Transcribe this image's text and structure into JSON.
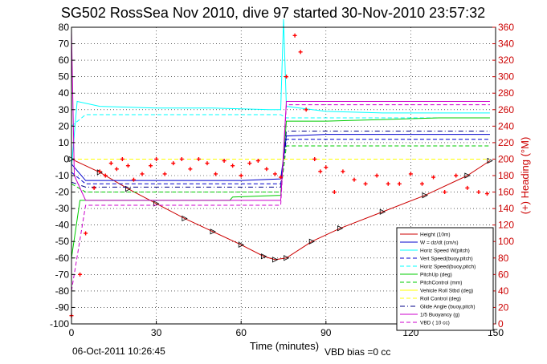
{
  "chart_data": {
    "type": "line",
    "title": "SG502 RossSea Nov 2010, dive 97 started 30-Nov-2010 23:57:32",
    "xlabel": "Time (minutes)",
    "ylabel": "",
    "y2label": "(+) Heading (°M)",
    "xlim": [
      0,
      150
    ],
    "ylim": [
      -100,
      80
    ],
    "y2lim": [
      0,
      360
    ],
    "x_ticks": [
      "0",
      "30",
      "60",
      "90",
      "120",
      "150"
    ],
    "y_ticks": [
      "-100",
      "-90",
      "-80",
      "-70",
      "-60",
      "-50",
      "-40",
      "-30",
      "-20",
      "-10",
      "0",
      "10",
      "20",
      "30",
      "40",
      "50",
      "60",
      "70",
      "80"
    ],
    "y2_ticks": [
      "0",
      "20",
      "40",
      "60",
      "80",
      "100",
      "120",
      "140",
      "160",
      "180",
      "200",
      "220",
      "240",
      "260",
      "280",
      "300",
      "320",
      "340",
      "360"
    ],
    "grid": true,
    "legend_position": "bottom-right",
    "footer_date": "06-Oct-2011 10:26:45",
    "footer_vbd": "VBD bias =0 cc",
    "legend": [
      {
        "name": "Height (10m)",
        "color": "#cc0000",
        "style": "solid"
      },
      {
        "name": "W = dz/dt (cm/s)",
        "color": "#0000cc",
        "style": "solid"
      },
      {
        "name": "Horiz Speed W(pitch)",
        "color": "#00ffff",
        "style": "solid"
      },
      {
        "name": "Vert Speed(buoy,pitch)",
        "color": "#0000cc",
        "style": "dashed"
      },
      {
        "name": "Horiz Speed(buoy,pitch)",
        "color": "#00ffff",
        "style": "dashed"
      },
      {
        "name": "PitchUp (deg)",
        "color": "#00cc00",
        "style": "solid"
      },
      {
        "name": "PitchControl (mm)",
        "color": "#00cc00",
        "style": "dashed"
      },
      {
        "name": "Vehicle Roll Stbd (deg)",
        "color": "#ffff00",
        "style": "solid"
      },
      {
        "name": "Roll Control (deg)",
        "color": "#ffff00",
        "style": "dashed"
      },
      {
        "name": "Glide Angle (buoy,pitch)",
        "color": "#000088",
        "style": "dashdot"
      },
      {
        "name": "1/5 Buoyancy (g)",
        "color": "#cc00cc",
        "style": "solid"
      },
      {
        "name": "VBD ( 10 cc)",
        "color": "#cc00cc",
        "style": "dashed"
      }
    ],
    "series": [
      {
        "name": "Height (10m)",
        "color": "#cc0000",
        "marker": "triangle",
        "x": [
          0,
          10,
          20,
          30,
          40,
          50,
          60,
          68,
          72,
          76,
          85,
          95,
          110,
          125,
          140,
          148
        ],
        "y": [
          0,
          -8,
          -18,
          -27,
          -36,
          -44,
          -52,
          -59,
          -61,
          -60,
          -50,
          -42,
          -32,
          -22,
          -10,
          -1
        ]
      },
      {
        "name": "W = dz/dt (cm/s)",
        "color": "#0000cc",
        "x": [
          0,
          5,
          20,
          40,
          60,
          74,
          76,
          90,
          110,
          130,
          148
        ],
        "y": [
          -3,
          -13,
          -13,
          -13,
          -13,
          -12,
          14,
          15,
          15,
          15,
          15
        ]
      },
      {
        "name": "Horiz Speed W(pitch)",
        "color": "#00ffff",
        "x": [
          0,
          2,
          10,
          30,
          50,
          70,
          74,
          75,
          76,
          90,
          110,
          130,
          148
        ],
        "y": [
          -5,
          35,
          32,
          31,
          31,
          30,
          30,
          85,
          32,
          29,
          28,
          28,
          28
        ]
      },
      {
        "name": "Vert Speed(buoy,pitch)",
        "color": "#0000cc",
        "x": [
          0,
          5,
          74,
          76,
          148
        ],
        "y": [
          -8,
          -15,
          -15,
          12,
          12
        ]
      },
      {
        "name": "Horiz Speed(buoy,pitch)",
        "color": "#00ffff",
        "x": [
          0,
          5,
          74,
          76,
          148
        ],
        "y": [
          20,
          27,
          27,
          25,
          25
        ]
      },
      {
        "name": "PitchUp (deg)",
        "color": "#00cc00",
        "x": [
          0,
          3,
          30,
          56,
          57,
          74,
          76,
          90,
          110,
          130,
          148
        ],
        "y": [
          -60,
          -25,
          -25,
          -25,
          -23,
          -22,
          23,
          23,
          24,
          25,
          25
        ]
      },
      {
        "name": "PitchControl (mm)",
        "color": "#00cc00",
        "x": [
          0,
          5,
          74,
          76,
          90,
          148
        ],
        "y": [
          -15,
          -20,
          -20,
          8,
          8,
          8
        ]
      },
      {
        "name": "Roll Control (deg)",
        "color": "#ffff00",
        "x": [
          0,
          148
        ],
        "y": [
          0,
          0
        ]
      },
      {
        "name": "Glide Angle (buoy,pitch)",
        "color": "#000088",
        "x": [
          0,
          5,
          74,
          76,
          148
        ],
        "y": [
          -14,
          -17,
          -17,
          17,
          17
        ]
      },
      {
        "name": "1/5 Buoyancy (g)",
        "color": "#cc00cc",
        "x": [
          0,
          1,
          5,
          74,
          76,
          148
        ],
        "y": [
          78,
          -10,
          -25,
          -25,
          35,
          35
        ]
      },
      {
        "name": "VBD ( 10 cc)",
        "color": "#cc00cc",
        "x": [
          0,
          5,
          74,
          76,
          148
        ],
        "y": [
          -80,
          -28,
          -28,
          33,
          33
        ]
      },
      {
        "name": "Heading (°M)",
        "color": "#ff0000",
        "axis": "right",
        "marker": "plus",
        "x": [
          0,
          3,
          5,
          8,
          10,
          12,
          14,
          16,
          18,
          20,
          22,
          25,
          28,
          30,
          33,
          36,
          39,
          42,
          45,
          48,
          51,
          54,
          57,
          60,
          63,
          66,
          69,
          72,
          74,
          76,
          79,
          81,
          83,
          86,
          88,
          90,
          93,
          96,
          100,
          104,
          108,
          112,
          116,
          120,
          124,
          128,
          132,
          136,
          140,
          144,
          147
        ],
        "y": [
          10,
          60,
          110,
          165,
          185,
          180,
          195,
          188,
          200,
          192,
          175,
          182,
          192,
          200,
          182,
          195,
          200,
          188,
          200,
          195,
          182,
          198,
          192,
          180,
          195,
          198,
          188,
          182,
          178,
          300,
          350,
          330,
          260,
          200,
          185,
          190,
          160,
          185,
          175,
          170,
          180,
          170,
          170,
          182,
          170,
          178,
          160,
          180,
          165,
          160,
          158
        ]
      }
    ]
  }
}
